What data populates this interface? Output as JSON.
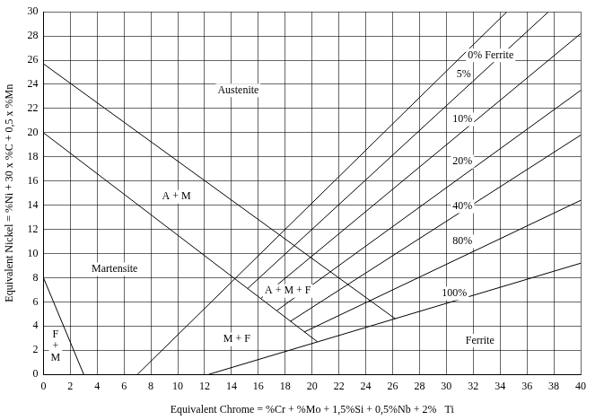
{
  "chart_data": {
    "type": "line",
    "x_label": "Equivalent Chrome = %Cr + %Mo + 1,5%Si + 0,5%Nb + 2%   Ti",
    "y_label": "Equivalent Nickel = %Ni + 30 x %C + 0,5 x %Mn",
    "xlim": [
      0,
      40
    ],
    "ylim": [
      0,
      30
    ],
    "xticks": [
      0,
      2,
      4,
      6,
      8,
      10,
      12,
      14,
      16,
      18,
      20,
      22,
      24,
      26,
      28,
      30,
      32,
      34,
      36,
      38,
      40
    ],
    "yticks": [
      0,
      2,
      4,
      6,
      8,
      10,
      12,
      14,
      16,
      18,
      20,
      22,
      24,
      26,
      28,
      30
    ],
    "grid": true,
    "color": "#000000",
    "series": [
      {
        "x": [
          0,
          3
        ],
        "values": [
          8,
          0
        ]
      },
      {
        "x": [
          0,
          20.4
        ],
        "values": [
          20,
          2.7
        ]
      },
      {
        "x": [
          0,
          26.2
        ],
        "values": [
          25.7,
          4.6
        ]
      },
      {
        "x": [
          7,
          34.5
        ],
        "values": [
          0,
          30
        ]
      },
      {
        "x": [
          15.2,
          37.6
        ],
        "values": [
          7.1,
          30
        ]
      },
      {
        "x": [
          16.2,
          40
        ],
        "values": [
          6.3,
          28.2
        ]
      },
      {
        "x": [
          17.4,
          40
        ],
        "values": [
          5.3,
          23.5
        ]
      },
      {
        "x": [
          18.4,
          40
        ],
        "values": [
          4.4,
          19.8
        ]
      },
      {
        "x": [
          19.4,
          40
        ],
        "values": [
          3.5,
          14.4
        ]
      },
      {
        "x": [
          12.3,
          40
        ],
        "values": [
          0,
          9.2
        ]
      }
    ],
    "annotations": [
      {
        "text": [
          "Austenite"
        ],
        "x": 14.5,
        "y": 23.5
      },
      {
        "text": [
          "A + M"
        ],
        "x": 9.9,
        "y": 14.7
      },
      {
        "text": [
          "Martensite"
        ],
        "x": 5.3,
        "y": 8.7
      },
      {
        "text": [
          "A + M + F"
        ],
        "x": 18.2,
        "y": 6.9
      },
      {
        "text": [
          "M + F"
        ],
        "x": 14.4,
        "y": 2.9
      },
      {
        "text": [
          "F",
          "+",
          "M"
        ],
        "x": 0.9,
        "y": 2.3
      },
      {
        "text": [
          "Ferrite"
        ],
        "x": 32.5,
        "y": 2.8
      },
      {
        "text": [
          "0% Ferrite"
        ],
        "x": 33.3,
        "y": 26.4
      },
      {
        "text": [
          "5%"
        ],
        "x": 31.3,
        "y": 24.8
      },
      {
        "text": [
          "10%"
        ],
        "x": 31.2,
        "y": 21.1
      },
      {
        "text": [
          "20%"
        ],
        "x": 31.2,
        "y": 17.6
      },
      {
        "text": [
          "40%"
        ],
        "x": 31.2,
        "y": 13.9
      },
      {
        "text": [
          "80%"
        ],
        "x": 31.2,
        "y": 11.0
      },
      {
        "text": [
          "100%"
        ],
        "x": 30.6,
        "y": 6.7
      }
    ]
  }
}
